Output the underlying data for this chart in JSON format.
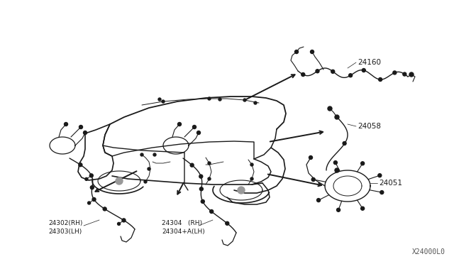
{
  "background_color": "#ffffff",
  "fig_width": 6.4,
  "fig_height": 3.72,
  "dpi": 100,
  "diagram_code": "X24000L0",
  "line_color": "#1a1a1a",
  "text_color": "#1a1a1a",
  "label_24160": "24160",
  "label_24058": "24058",
  "label_24051": "24051",
  "label_24302": "24302(RH)",
  "label_24303": "24303(LH)",
  "label_24304a": "24304   (RH)",
  "label_24304b": "24304+A(LH)"
}
